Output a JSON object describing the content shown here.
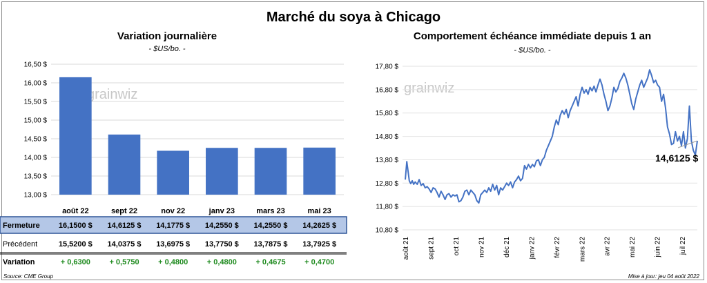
{
  "title": "Marché du soya à Chicago",
  "watermark": "grainwiz",
  "source": "Source: CME Group",
  "updated": "Mise à jour: jeu 04 août 2022",
  "chart_data": [
    {
      "type": "bar",
      "title": "Variation journalière",
      "unit": "- $US/bo. -",
      "categories": [
        "août 22",
        "sept 22",
        "nov 22",
        "janv 23",
        "mars 23",
        "mai 23"
      ],
      "values": [
        16.15,
        14.6125,
        14.1775,
        14.255,
        14.255,
        14.2625
      ],
      "ylim": [
        13.0,
        16.5
      ],
      "yticks": [
        "13,00 $",
        "13,50 $",
        "14,00 $",
        "14,50 $",
        "15,00 $",
        "15,50 $",
        "16,00 $",
        "16,50 $"
      ],
      "bar_color": "#4472c4",
      "table": {
        "rows": [
          {
            "label": "Fermeture",
            "values": [
              "16,1500 $",
              "14,6125 $",
              "14,1775 $",
              "14,2550 $",
              "14,2550 $",
              "14,2625 $"
            ]
          },
          {
            "label": "Précédent",
            "values": [
              "15,5200 $",
              "14,0375 $",
              "13,6975 $",
              "13,7750 $",
              "13,7875 $",
              "13,7925 $"
            ]
          },
          {
            "label": "Variation",
            "values": [
              "+ 0,6300",
              "+ 0,5750",
              "+ 0,4800",
              "+ 0,4800",
              "+ 0,4675",
              "+ 0,4700"
            ]
          }
        ]
      }
    },
    {
      "type": "line",
      "title": "Comportement  échéance immédiate depuis 1 an",
      "unit": "- $US/bo. -",
      "ylim": [
        10.8,
        17.8
      ],
      "yticks": [
        "10,80 $",
        "11,80 $",
        "12,80 $",
        "13,80 $",
        "14,80 $",
        "15,80 $",
        "16,80 $",
        "17,80 $"
      ],
      "xticks": [
        "août 21",
        "sept 21",
        "oct 21",
        "nov 21",
        "déc 21",
        "janv 22",
        "févr 22",
        "mars 22",
        "avr 22",
        "mai 22",
        "juin 22",
        "juil 22"
      ],
      "line_color": "#4472c4",
      "last_label": "14,6125 $",
      "series": [
        {
          "x": 0,
          "y": 12.95
        },
        {
          "x": 1.5,
          "y": 13.72
        },
        {
          "x": 3,
          "y": 13.25
        },
        {
          "x": 4,
          "y": 12.9
        },
        {
          "x": 5.5,
          "y": 12.78
        },
        {
          "x": 7,
          "y": 12.9
        },
        {
          "x": 8.5,
          "y": 12.75
        },
        {
          "x": 10,
          "y": 12.85
        },
        {
          "x": 12,
          "y": 12.75
        },
        {
          "x": 14,
          "y": 12.95
        },
        {
          "x": 16,
          "y": 12.7
        },
        {
          "x": 18,
          "y": 12.78
        },
        {
          "x": 20,
          "y": 12.6
        },
        {
          "x": 22,
          "y": 12.65
        },
        {
          "x": 24,
          "y": 12.55
        },
        {
          "x": 26,
          "y": 12.4
        },
        {
          "x": 28,
          "y": 12.6
        },
        {
          "x": 30,
          "y": 12.55
        },
        {
          "x": 32,
          "y": 12.4
        },
        {
          "x": 34,
          "y": 12.2
        },
        {
          "x": 36,
          "y": 12.45
        },
        {
          "x": 38,
          "y": 12.3
        },
        {
          "x": 40,
          "y": 12.1
        },
        {
          "x": 42,
          "y": 12.3
        },
        {
          "x": 44,
          "y": 12.35
        },
        {
          "x": 46,
          "y": 12.2
        },
        {
          "x": 48,
          "y": 12.3
        },
        {
          "x": 50,
          "y": 12.25
        },
        {
          "x": 52,
          "y": 12.3
        },
        {
          "x": 54,
          "y": 12.0
        },
        {
          "x": 56,
          "y": 12.05
        },
        {
          "x": 58,
          "y": 12.2
        },
        {
          "x": 60,
          "y": 12.45
        },
        {
          "x": 62,
          "y": 12.5
        },
        {
          "x": 64,
          "y": 12.3
        },
        {
          "x": 66,
          "y": 12.5
        },
        {
          "x": 68,
          "y": 12.4
        },
        {
          "x": 70,
          "y": 12.3
        },
        {
          "x": 72,
          "y": 12.05
        },
        {
          "x": 74,
          "y": 11.95
        },
        {
          "x": 76,
          "y": 12.3
        },
        {
          "x": 78,
          "y": 12.4
        },
        {
          "x": 80,
          "y": 12.5
        },
        {
          "x": 82,
          "y": 12.4
        },
        {
          "x": 84,
          "y": 12.6
        },
        {
          "x": 86,
          "y": 12.45
        },
        {
          "x": 88,
          "y": 12.75
        },
        {
          "x": 90,
          "y": 12.5
        },
        {
          "x": 92,
          "y": 12.7
        },
        {
          "x": 94,
          "y": 12.3
        },
        {
          "x": 96,
          "y": 12.6
        },
        {
          "x": 98,
          "y": 12.5
        },
        {
          "x": 100,
          "y": 12.65
        },
        {
          "x": 102,
          "y": 12.8
        },
        {
          "x": 104,
          "y": 12.7
        },
        {
          "x": 106,
          "y": 12.85
        },
        {
          "x": 108,
          "y": 12.6
        },
        {
          "x": 110,
          "y": 12.85
        },
        {
          "x": 112,
          "y": 12.95
        },
        {
          "x": 114,
          "y": 13.1
        },
        {
          "x": 116,
          "y": 12.9
        },
        {
          "x": 118,
          "y": 13.0
        },
        {
          "x": 120,
          "y": 13.55
        },
        {
          "x": 122,
          "y": 13.4
        },
        {
          "x": 124,
          "y": 13.6
        },
        {
          "x": 126,
          "y": 13.45
        },
        {
          "x": 128,
          "y": 13.6
        },
        {
          "x": 130,
          "y": 13.5
        },
        {
          "x": 132,
          "y": 13.75
        },
        {
          "x": 134,
          "y": 13.8
        },
        {
          "x": 136,
          "y": 13.55
        },
        {
          "x": 138,
          "y": 13.8
        },
        {
          "x": 140,
          "y": 13.9
        },
        {
          "x": 142,
          "y": 14.2
        },
        {
          "x": 144,
          "y": 14.4
        },
        {
          "x": 146,
          "y": 14.6
        },
        {
          "x": 148,
          "y": 14.8
        },
        {
          "x": 150,
          "y": 15.2
        },
        {
          "x": 152,
          "y": 15.5
        },
        {
          "x": 154,
          "y": 15.3
        },
        {
          "x": 156,
          "y": 15.7
        },
        {
          "x": 158,
          "y": 15.9
        },
        {
          "x": 160,
          "y": 15.75
        },
        {
          "x": 162,
          "y": 15.95
        },
        {
          "x": 164,
          "y": 15.6
        },
        {
          "x": 166,
          "y": 15.9
        },
        {
          "x": 168,
          "y": 16.1
        },
        {
          "x": 170,
          "y": 16.3
        },
        {
          "x": 172,
          "y": 16.5
        },
        {
          "x": 174,
          "y": 16.1
        },
        {
          "x": 176,
          "y": 16.6
        },
        {
          "x": 178,
          "y": 16.9
        },
        {
          "x": 180,
          "y": 16.65
        },
        {
          "x": 182,
          "y": 16.8
        },
        {
          "x": 184,
          "y": 16.6
        },
        {
          "x": 186,
          "y": 16.9
        },
        {
          "x": 188,
          "y": 16.75
        },
        {
          "x": 190,
          "y": 16.95
        },
        {
          "x": 192,
          "y": 16.7
        },
        {
          "x": 194,
          "y": 17.0
        },
        {
          "x": 196,
          "y": 17.25
        },
        {
          "x": 198,
          "y": 17.0
        },
        {
          "x": 200,
          "y": 16.6
        },
        {
          "x": 202,
          "y": 16.3
        },
        {
          "x": 204,
          "y": 15.9
        },
        {
          "x": 206,
          "y": 16.1
        },
        {
          "x": 208,
          "y": 16.45
        },
        {
          "x": 210,
          "y": 16.9
        },
        {
          "x": 212,
          "y": 16.7
        },
        {
          "x": 214,
          "y": 16.85
        },
        {
          "x": 216,
          "y": 17.15
        },
        {
          "x": 218,
          "y": 17.3
        },
        {
          "x": 220,
          "y": 17.5
        },
        {
          "x": 222,
          "y": 17.3
        },
        {
          "x": 224,
          "y": 17.0
        },
        {
          "x": 226,
          "y": 16.6
        },
        {
          "x": 228,
          "y": 16.2
        },
        {
          "x": 230,
          "y": 15.95
        },
        {
          "x": 232,
          "y": 16.4
        },
        {
          "x": 234,
          "y": 16.7
        },
        {
          "x": 236,
          "y": 17.0
        },
        {
          "x": 238,
          "y": 17.2
        },
        {
          "x": 240,
          "y": 16.9
        },
        {
          "x": 242,
          "y": 17.1
        },
        {
          "x": 244,
          "y": 17.3
        },
        {
          "x": 246,
          "y": 17.65
        },
        {
          "x": 248,
          "y": 17.4
        },
        {
          "x": 250,
          "y": 17.1
        },
        {
          "x": 252,
          "y": 17.2
        },
        {
          "x": 254,
          "y": 17.0
        },
        {
          "x": 256,
          "y": 16.9
        },
        {
          "x": 258,
          "y": 16.3
        },
        {
          "x": 260,
          "y": 16.6
        },
        {
          "x": 262,
          "y": 16.0
        },
        {
          "x": 264,
          "y": 15.2
        },
        {
          "x": 266,
          "y": 14.9
        },
        {
          "x": 268,
          "y": 14.45
        },
        {
          "x": 270,
          "y": 14.5
        },
        {
          "x": 272,
          "y": 15.0
        },
        {
          "x": 274,
          "y": 14.6
        },
        {
          "x": 276,
          "y": 14.8
        },
        {
          "x": 278,
          "y": 14.4
        },
        {
          "x": 280,
          "y": 15.0
        },
        {
          "x": 282,
          "y": 14.3
        },
        {
          "x": 284,
          "y": 14.7
        },
        {
          "x": 286,
          "y": 16.1
        },
        {
          "x": 288,
          "y": 14.6
        },
        {
          "x": 290,
          "y": 14.2
        },
        {
          "x": 292,
          "y": 14.0
        },
        {
          "x": 294,
          "y": 14.61
        }
      ]
    }
  ]
}
